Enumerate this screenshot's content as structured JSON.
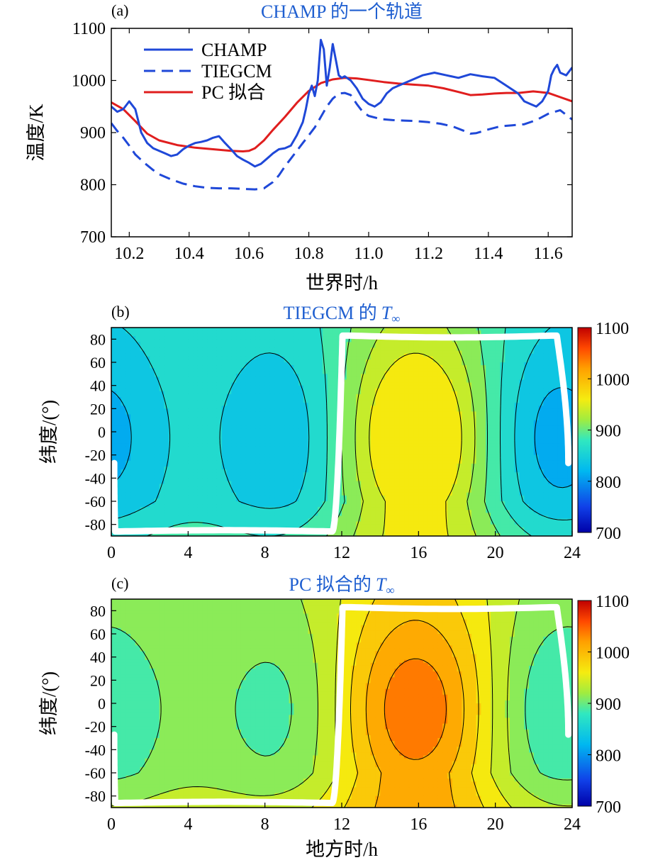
{
  "colors": {
    "champ": "#1f48d8",
    "tiegcm": "#1f48d8",
    "pc_fit": "#e01e1e",
    "title": "#1f5fd0",
    "axis": "#000000",
    "track": "#ffffff"
  },
  "chart_data": [
    {
      "panel": "(a)",
      "type": "line",
      "title": "CHAMP 的一个轨道",
      "xlabel": "世界时/h",
      "ylabel": "温度/K",
      "xlim": [
        10.14,
        11.68
      ],
      "ylim": [
        700,
        1100
      ],
      "xticks": [
        "10.2",
        "10.4",
        "10.6",
        "10.8",
        "11.0",
        "11.2",
        "11.4",
        "11.6"
      ],
      "xtick_values": [
        10.2,
        10.4,
        10.6,
        10.8,
        11.0,
        11.2,
        11.4,
        11.6
      ],
      "yticks": [
        "700",
        "800",
        "900",
        "1000",
        "1100"
      ],
      "ytick_values": [
        700,
        800,
        900,
        1000,
        1100
      ],
      "legend_position": "top-left",
      "series": [
        {
          "name": "CHAMP",
          "style": "solid",
          "x": [
            10.14,
            10.16,
            10.18,
            10.2,
            10.22,
            10.24,
            10.26,
            10.28,
            10.3,
            10.32,
            10.34,
            10.36,
            10.38,
            10.4,
            10.42,
            10.44,
            10.46,
            10.48,
            10.5,
            10.52,
            10.54,
            10.56,
            10.58,
            10.6,
            10.62,
            10.64,
            10.66,
            10.68,
            10.7,
            10.72,
            10.74,
            10.76,
            10.78,
            10.79,
            10.8,
            10.81,
            10.82,
            10.83,
            10.84,
            10.85,
            10.86,
            10.87,
            10.88,
            10.89,
            10.9,
            10.91,
            10.92,
            10.94,
            10.96,
            10.98,
            11.0,
            11.02,
            11.04,
            11.06,
            11.08,
            11.1,
            11.14,
            11.18,
            11.22,
            11.26,
            11.3,
            11.34,
            11.38,
            11.42,
            11.46,
            11.5,
            11.52,
            11.54,
            11.56,
            11.58,
            11.6,
            11.61,
            11.62,
            11.63,
            11.64,
            11.66,
            11.68
          ],
          "y": [
            950,
            940,
            945,
            960,
            945,
            900,
            880,
            870,
            865,
            860,
            855,
            858,
            868,
            875,
            880,
            882,
            885,
            890,
            893,
            880,
            868,
            855,
            848,
            842,
            835,
            840,
            850,
            860,
            868,
            870,
            875,
            895,
            920,
            945,
            975,
            990,
            970,
            1000,
            1078,
            1060,
            990,
            1025,
            1070,
            1040,
            1010,
            1005,
            1008,
            1000,
            985,
            965,
            955,
            950,
            958,
            975,
            985,
            990,
            1000,
            1010,
            1015,
            1010,
            1005,
            1012,
            1008,
            1005,
            990,
            975,
            960,
            955,
            950,
            960,
            980,
            1010,
            1022,
            1030,
            1015,
            1010,
            1025
          ]
        },
        {
          "name": "TIEGCM",
          "style": "dashed",
          "x": [
            10.14,
            10.16,
            10.18,
            10.2,
            10.22,
            10.25,
            10.28,
            10.3,
            10.34,
            10.38,
            10.42,
            10.46,
            10.5,
            10.54,
            10.58,
            10.62,
            10.65,
            10.68,
            10.7,
            10.72,
            10.74,
            10.76,
            10.78,
            10.8,
            10.82,
            10.84,
            10.86,
            10.88,
            10.9,
            10.92,
            10.94,
            10.96,
            10.98,
            11.0,
            11.04,
            11.08,
            11.12,
            11.16,
            11.2,
            11.24,
            11.28,
            11.32,
            11.34,
            11.36,
            11.4,
            11.44,
            11.48,
            11.52,
            11.56,
            11.6,
            11.64,
            11.68
          ],
          "y": [
            918,
            903,
            890,
            875,
            858,
            842,
            828,
            820,
            810,
            802,
            797,
            794,
            793,
            793,
            792,
            791,
            793,
            805,
            818,
            835,
            850,
            865,
            880,
            895,
            910,
            930,
            950,
            965,
            975,
            976,
            972,
            955,
            940,
            932,
            926,
            924,
            923,
            922,
            920,
            917,
            912,
            903,
            898,
            899,
            906,
            912,
            914,
            916,
            924,
            936,
            943,
            925
          ]
        },
        {
          "name": "PC 拟合",
          "style": "solid",
          "x": [
            10.14,
            10.18,
            10.22,
            10.26,
            10.3,
            10.36,
            10.42,
            10.48,
            10.54,
            10.58,
            10.6,
            10.62,
            10.65,
            10.68,
            10.72,
            10.76,
            10.8,
            10.84,
            10.88,
            10.92,
            10.96,
            11.0,
            11.05,
            11.1,
            11.15,
            11.2,
            11.25,
            11.3,
            11.34,
            11.38,
            11.42,
            11.46,
            11.5,
            11.55,
            11.6,
            11.64,
            11.68
          ],
          "y": [
            958,
            945,
            922,
            898,
            885,
            876,
            871,
            868,
            865,
            864,
            865,
            870,
            885,
            905,
            930,
            957,
            980,
            995,
            1002,
            1005,
            1004,
            1001,
            997,
            994,
            992,
            990,
            985,
            978,
            972,
            973,
            975,
            976,
            976,
            979,
            976,
            968,
            960
          ]
        }
      ]
    },
    {
      "panel": "(b)",
      "type": "heatmap",
      "title": "TIEGCM 的",
      "title_symbol": "T",
      "title_subscript": "∞",
      "xlabel": "",
      "ylabel": "纬度/(°)",
      "xlim": [
        0,
        24
      ],
      "ylim": [
        -90,
        90
      ],
      "xticks": [
        "0",
        "4",
        "8",
        "12",
        "16",
        "20",
        "24"
      ],
      "yticks": [
        "80",
        "60",
        "40",
        "20",
        "0",
        "-20",
        "-40",
        "-60",
        "-80"
      ],
      "colorbar": {
        "min": 700,
        "max": 1100,
        "ticks": [
          "1100",
          "1000",
          "900",
          "800",
          "700"
        ]
      },
      "field": {
        "base": 880,
        "diurnal_amp": 70,
        "diurnal_peak_lt": 15.5,
        "semidiurnal_amp": 45,
        "semidiurnal_peak_lt": 16,
        "lat_center": -5,
        "lat_scale": 80,
        "south_pole_bonus": 60,
        "levels": [
          750,
          775,
          800,
          825,
          850,
          875,
          900,
          925,
          950
        ]
      }
    },
    {
      "panel": "(c)",
      "type": "heatmap",
      "title": "PC 拟合的",
      "title_symbol": "T",
      "title_subscript": "∞",
      "xlabel": "地方时/h",
      "ylabel": "纬度/(°)",
      "xlim": [
        0,
        24
      ],
      "ylim": [
        -90,
        90
      ],
      "xticks": [
        "0",
        "4",
        "8",
        "12",
        "16",
        "20",
        "24"
      ],
      "yticks": [
        "80",
        "60",
        "40",
        "20",
        "0",
        "-20",
        "-40",
        "-60",
        "-80"
      ],
      "colorbar": {
        "min": 700,
        "max": 1100,
        "ticks": [
          "1100",
          "1000",
          "900",
          "800",
          "700"
        ]
      },
      "field": {
        "base": 938,
        "diurnal_amp": 68,
        "diurnal_peak_lt": 15.5,
        "semidiurnal_amp": 38,
        "semidiurnal_peak_lt": 16,
        "lat_center": -5,
        "lat_scale": 80,
        "south_pole_bonus": 60,
        "levels": [
          850,
          875,
          900,
          925,
          950,
          975,
          1000,
          1025
        ]
      }
    }
  ],
  "orbit_track": {
    "lt_start": 0.3,
    "asc_lt": 11.8,
    "desc_lt": 0.15,
    "lat_max": 83,
    "lat_min": -86,
    "north_end_lt": 23.8,
    "south_start_lat": -27
  }
}
